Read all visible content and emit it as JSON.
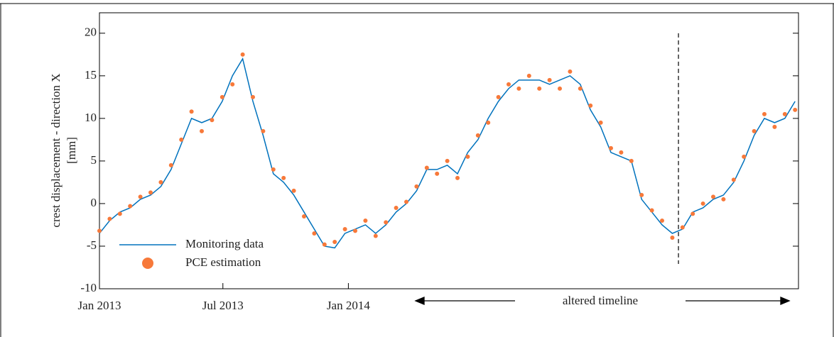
{
  "chart_data": {
    "type": "line",
    "ylabel": [
      "crest displacement - direction X",
      "[mm]"
    ],
    "annotation": "altered timeline",
    "x": [
      0,
      15,
      30,
      45,
      60,
      75,
      90,
      105,
      120,
      135,
      150,
      165,
      180,
      195,
      210,
      225,
      240,
      255,
      270,
      285,
      300,
      315,
      330,
      345,
      360,
      375,
      390,
      405,
      420,
      435,
      450,
      465,
      480,
      495,
      510,
      525,
      540,
      555,
      570,
      585,
      600,
      615,
      630,
      645,
      660,
      675,
      690,
      705,
      720,
      735,
      750,
      765,
      780,
      795,
      810,
      825,
      840,
      855,
      870,
      885,
      900,
      915,
      930,
      945,
      960,
      975,
      990,
      1005,
      1020
    ],
    "series": [
      {
        "name": "Monitoring data",
        "color": "#0072bd",
        "style": "line",
        "values": [
          -3.5,
          -2,
          -1,
          -0.5,
          0.5,
          1,
          2,
          4,
          7,
          10,
          9.5,
          10,
          12,
          15,
          17,
          12,
          8,
          3.5,
          2.5,
          1,
          -1,
          -3,
          -5,
          -5.2,
          -3.5,
          -3,
          -2.5,
          -3.5,
          -2.5,
          -1,
          0,
          1.5,
          4,
          4,
          4.5,
          3.5,
          6,
          7.5,
          10,
          12,
          13.5,
          14.5,
          14.5,
          14.5,
          14,
          14.5,
          15,
          14,
          11,
          9,
          6,
          5.5,
          5,
          0.5,
          -1,
          -2.5,
          -3.5,
          -3,
          -1,
          -0.5,
          0.5,
          1,
          2.5,
          5,
          8,
          10,
          9.5,
          10,
          12
        ]
      },
      {
        "name": "PCE estimation",
        "color": "#f7793a",
        "style": "marker",
        "values": [
          -3.2,
          -1.8,
          -1.2,
          -0.3,
          0.8,
          1.3,
          2.5,
          4.5,
          7.5,
          10.8,
          8.5,
          9.8,
          12.5,
          14,
          17.5,
          12.5,
          8.5,
          4,
          3,
          1.5,
          -1.5,
          -3.5,
          -4.8,
          -4.5,
          -3,
          -3.2,
          -2,
          -3.8,
          -2.2,
          -0.5,
          0.2,
          2,
          4.2,
          3.5,
          5,
          3,
          5.5,
          8,
          9.5,
          12.5,
          14,
          13.5,
          15,
          13.5,
          14.5,
          13.5,
          15.5,
          13.5,
          11.5,
          9.5,
          6.5,
          6,
          5,
          1,
          -0.8,
          -2,
          -4,
          -2.8,
          -1.2,
          0,
          0.8,
          0.5,
          2.8,
          5.5,
          8.5,
          10.5,
          9,
          10.5,
          11
        ]
      }
    ],
    "xlim": [
      0,
      1025
    ],
    "xticks": [
      {
        "value": 0,
        "label": "Jan 2013"
      },
      {
        "value": 181,
        "label": "Jul 2013"
      },
      {
        "value": 365,
        "label": "Jan 2014"
      }
    ],
    "ylim": [
      -10,
      22.4
    ],
    "yticks": [
      -10,
      -5,
      0,
      5,
      10,
      15,
      20
    ],
    "vline_x": 849,
    "legend": "lower left"
  }
}
